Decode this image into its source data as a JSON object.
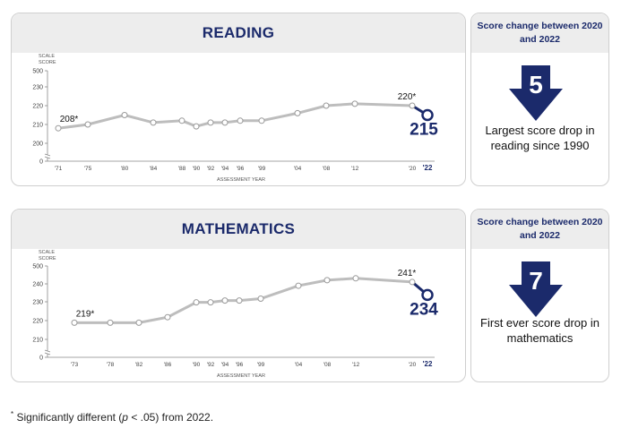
{
  "panels": [
    {
      "title": "READING",
      "change_header": "Score change between 2020 and 2022",
      "change_value": "5",
      "change_text": "Largest score drop in reading since 1990"
    },
    {
      "title": "MATHEMATICS",
      "change_header": "Score change between 2020 and 2022",
      "change_value": "7",
      "change_text": "First ever score drop in mathematics"
    }
  ],
  "footnote": {
    "star": "*",
    "text_before": " Significantly different (",
    "p": "p",
    "text_after": " < .05) from 2022."
  },
  "colors": {
    "title_navy": "#1b2a6b",
    "line_gray": "#bdbdbd",
    "header_bg": "#ededed",
    "highlight": "#1b2a6b"
  },
  "chart_data": [
    {
      "type": "line",
      "title": "READING",
      "xlabel": "ASSESSMENT YEAR",
      "ylabel": "SCALE SCORE",
      "ylim": [
        0,
        500
      ],
      "y_ticks": [
        "0",
        "200",
        "210",
        "220",
        "230",
        "500"
      ],
      "axis_break": true,
      "x": [
        "'71",
        "'75",
        "'80",
        "'84",
        "'88",
        "'90",
        "'92",
        "'94",
        "'96",
        "'99",
        "'04",
        "'08",
        "'12",
        "'20",
        "'22"
      ],
      "values": [
        208,
        210,
        215,
        211,
        212,
        209,
        211,
        211,
        212,
        212,
        216,
        220,
        221,
        220,
        215
      ],
      "labels": [
        {
          "index": 0,
          "text": "208*"
        },
        {
          "index": 13,
          "text": "220*"
        },
        {
          "index": 14,
          "text": "215"
        }
      ]
    },
    {
      "type": "line",
      "title": "MATHEMATICS",
      "xlabel": "ASSESSMENT YEAR",
      "ylabel": "SCALE SCORE",
      "ylim": [
        0,
        500
      ],
      "y_ticks": [
        "0",
        "210",
        "220",
        "230",
        "240",
        "500"
      ],
      "axis_break": true,
      "x": [
        "'73",
        "'78",
        "'82",
        "'86",
        "'90",
        "'92",
        "'94",
        "'96",
        "'99",
        "'04",
        "'08",
        "'12",
        "'20",
        "'22"
      ],
      "values": [
        219,
        219,
        219,
        222,
        230,
        230,
        231,
        231,
        232,
        239,
        242,
        243,
        241,
        234
      ],
      "labels": [
        {
          "index": 0,
          "text": "219*"
        },
        {
          "index": 12,
          "text": "241*"
        },
        {
          "index": 13,
          "text": "234"
        }
      ]
    }
  ]
}
